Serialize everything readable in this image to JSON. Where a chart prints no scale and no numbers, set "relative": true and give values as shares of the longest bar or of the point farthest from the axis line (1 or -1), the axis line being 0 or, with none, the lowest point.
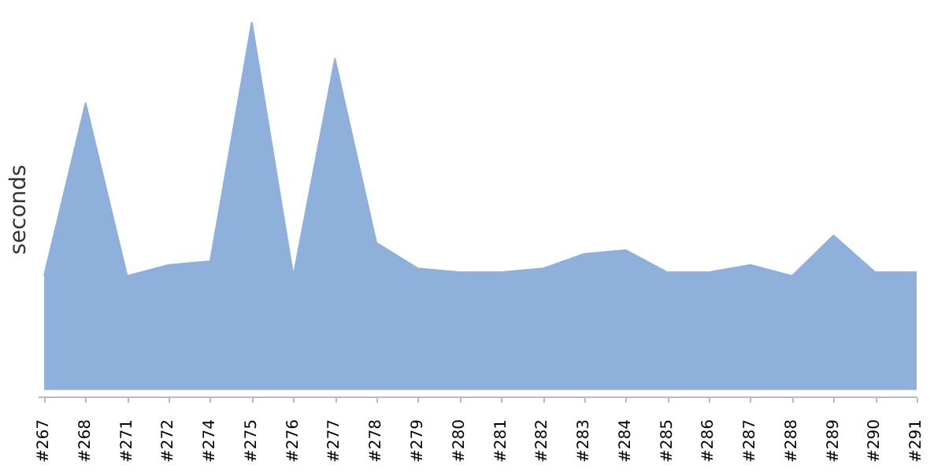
{
  "chart_data": {
    "type": "area",
    "ylabel": "seconds",
    "relative": true,
    "grid": false,
    "legend": false,
    "marker": "none",
    "categories": [
      "#267",
      "#268",
      "#271",
      "#272",
      "#274",
      "#275",
      "#276",
      "#277",
      "#278",
      "#279",
      "#280",
      "#281",
      "#282",
      "#283",
      "#284",
      "#285",
      "#286",
      "#287",
      "#288",
      "#289",
      "#290",
      "#291"
    ],
    "series": [
      {
        "color": "#8fb0da",
        "values": [
          0.31,
          0.78,
          0.31,
          0.34,
          0.35,
          1,
          0.31,
          0.9,
          0.4,
          0.33,
          0.32,
          0.32,
          0.33,
          0.37,
          0.38,
          0.32,
          0.32,
          0.34,
          0.31,
          0.42,
          0.32,
          0.32
        ]
      }
    ]
  }
}
